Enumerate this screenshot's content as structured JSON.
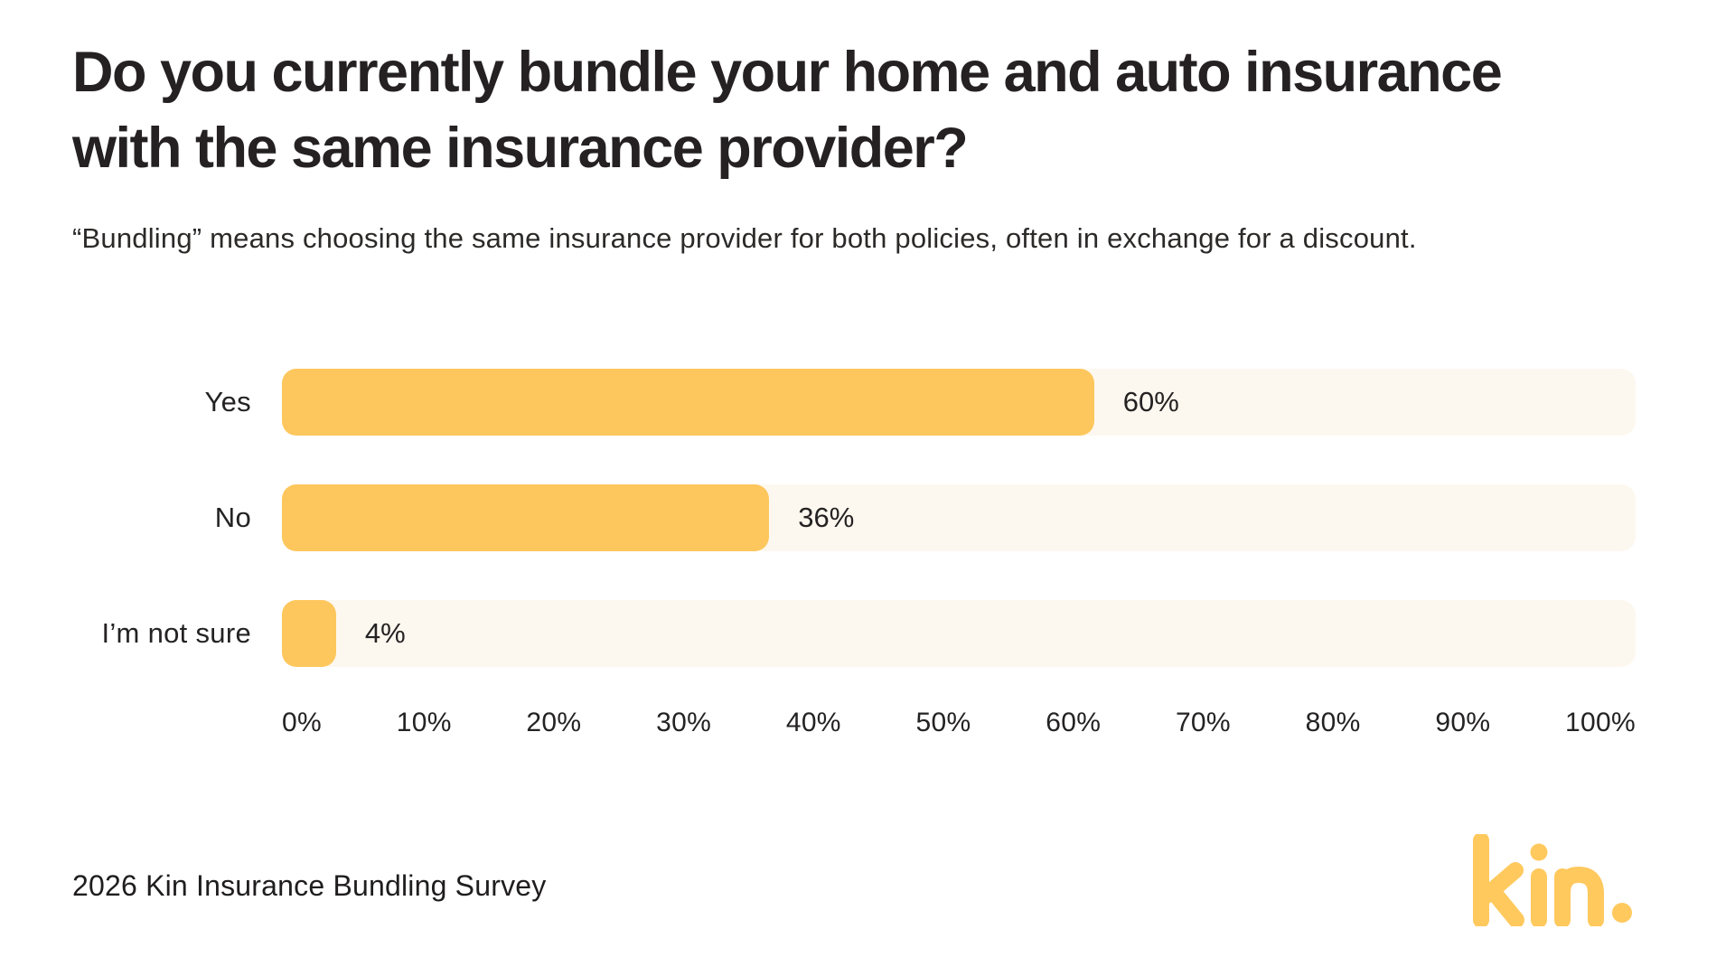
{
  "title": {
    "line1": "Do you currently bundle your home and auto insurance",
    "line2": "with the same insurance provider?"
  },
  "subtitle": "“Bundling” means choosing the same insurance provider for both policies, often in exchange for a discount.",
  "chart_data": {
    "type": "bar",
    "orientation": "horizontal",
    "title": "Do you currently bundle your home and auto insurance with the same insurance provider?",
    "categories": [
      "Yes",
      "No",
      "I’m not sure"
    ],
    "values": [
      60,
      36,
      4
    ],
    "value_labels": [
      "60%",
      "36%",
      "4%"
    ],
    "x_tick_labels": [
      "0%",
      "10%",
      "20%",
      "30%",
      "40%",
      "50%",
      "60%",
      "70%",
      "80%",
      "90%",
      "100%"
    ],
    "xlim": [
      0,
      100
    ],
    "grid": false,
    "legend": false,
    "bar_color": "#FDC75D",
    "track_color": "#FDF8EF"
  },
  "footer": {
    "source_label": "2026 Kin Insurance Bundling Survey"
  },
  "logo": {
    "name": "kin-logo",
    "text": "kin.",
    "color": "#FFC95E"
  },
  "colors": {
    "background": "#FFFFFF",
    "text": "#252122",
    "accent_yellow": "#FDC75D",
    "track_cream": "#FDF8EF"
  }
}
